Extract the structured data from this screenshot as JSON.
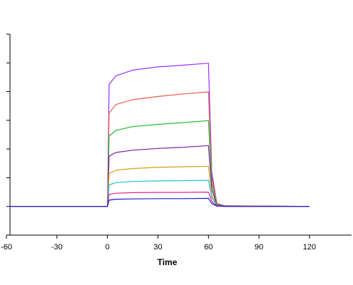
{
  "chart_data": {
    "type": "line",
    "title": "",
    "xlabel": "Time",
    "ylabel": "",
    "xlim": [
      -60,
      145
    ],
    "ylim": [
      -10,
      60
    ],
    "x_ticks": [
      -60,
      -30,
      0,
      30,
      60,
      90,
      120
    ],
    "x_tick_labels": [
      "-60",
      "-30",
      "0",
      "30",
      "60",
      "90",
      "120"
    ],
    "y_ticks": [
      -10,
      0,
      10,
      20,
      30,
      40,
      50,
      60
    ],
    "y_tick_labels_visible": false,
    "grid": false,
    "legend": "none",
    "series": [
      {
        "color": "#9b30ff",
        "values": [
          [
            -58,
            0
          ],
          [
            0,
            0
          ],
          [
            1,
            42.5
          ],
          [
            5,
            45.5
          ],
          [
            15,
            47.5
          ],
          [
            30,
            48.6
          ],
          [
            45,
            49.2
          ],
          [
            60,
            49.9
          ],
          [
            62,
            12
          ],
          [
            65,
            1
          ],
          [
            70,
            0.2
          ],
          [
            120,
            0
          ]
        ]
      },
      {
        "color": "#e8604c",
        "values": [
          [
            -58,
            0
          ],
          [
            0,
            0
          ],
          [
            1,
            32.5
          ],
          [
            5,
            35.5
          ],
          [
            15,
            37.2
          ],
          [
            30,
            38.3
          ],
          [
            45,
            39.2
          ],
          [
            60,
            39.9
          ],
          [
            62,
            10
          ],
          [
            65,
            1
          ],
          [
            70,
            0.2
          ],
          [
            120,
            0
          ]
        ]
      },
      {
        "color": "#22bb33",
        "values": [
          [
            -58,
            0
          ],
          [
            0,
            0
          ],
          [
            1,
            24.5
          ],
          [
            5,
            26.5
          ],
          [
            15,
            27.8
          ],
          [
            30,
            28.6
          ],
          [
            45,
            29.2
          ],
          [
            60,
            29.9
          ],
          [
            62,
            8
          ],
          [
            65,
            0.8
          ],
          [
            70,
            0.1
          ],
          [
            120,
            0
          ]
        ]
      },
      {
        "color": "#7a1fa2",
        "values": [
          [
            -58,
            0
          ],
          [
            0,
            0
          ],
          [
            1,
            17.5
          ],
          [
            5,
            18.8
          ],
          [
            15,
            19.6
          ],
          [
            30,
            20.2
          ],
          [
            45,
            20.6
          ],
          [
            60,
            21.2
          ],
          [
            62,
            6
          ],
          [
            65,
            0.6
          ],
          [
            70,
            0.1
          ],
          [
            120,
            0
          ]
        ]
      },
      {
        "color": "#d4a017",
        "values": [
          [
            -58,
            0
          ],
          [
            0,
            0
          ],
          [
            1,
            11.5
          ],
          [
            5,
            12.6
          ],
          [
            15,
            13.2
          ],
          [
            30,
            13.6
          ],
          [
            45,
            13.8
          ],
          [
            60,
            14.0
          ],
          [
            62,
            4
          ],
          [
            65,
            0.4
          ],
          [
            70,
            0
          ],
          [
            120,
            0
          ]
        ]
      },
      {
        "color": "#22c3d6",
        "values": [
          [
            -58,
            0
          ],
          [
            0,
            0
          ],
          [
            1,
            7.5
          ],
          [
            5,
            8.3
          ],
          [
            15,
            8.7
          ],
          [
            30,
            8.9
          ],
          [
            45,
            9.0
          ],
          [
            60,
            9.1
          ],
          [
            62,
            3
          ],
          [
            65,
            0.3
          ],
          [
            70,
            0
          ],
          [
            120,
            0
          ]
        ]
      },
      {
        "color": "#e0209a",
        "values": [
          [
            -58,
            0
          ],
          [
            0,
            0
          ],
          [
            1,
            4.2
          ],
          [
            5,
            4.6
          ],
          [
            15,
            4.8
          ],
          [
            30,
            4.9
          ],
          [
            45,
            4.9
          ],
          [
            60,
            5.0
          ],
          [
            62,
            1.8
          ],
          [
            65,
            0.2
          ],
          [
            70,
            0
          ],
          [
            120,
            0
          ]
        ]
      },
      {
        "color": "#1c1cc8",
        "values": [
          [
            -58,
            0
          ],
          [
            0,
            0
          ],
          [
            1,
            2.2
          ],
          [
            5,
            2.5
          ],
          [
            15,
            2.6
          ],
          [
            30,
            2.7
          ],
          [
            45,
            2.7
          ],
          [
            60,
            2.8
          ],
          [
            62,
            1
          ],
          [
            65,
            0.1
          ],
          [
            70,
            0
          ],
          [
            120,
            0
          ]
        ]
      }
    ]
  }
}
